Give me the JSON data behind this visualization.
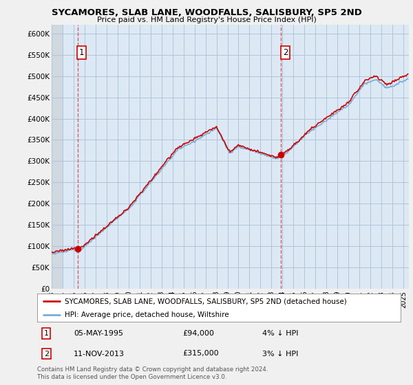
{
  "title1": "SYCAMORES, SLAB LANE, WOODFALLS, SALISBURY, SP5 2ND",
  "title2": "Price paid vs. HM Land Registry's House Price Index (HPI)",
  "ylabel_ticks": [
    "£0",
    "£50K",
    "£100K",
    "£150K",
    "£200K",
    "£250K",
    "£300K",
    "£350K",
    "£400K",
    "£450K",
    "£500K",
    "£550K",
    "£600K"
  ],
  "ytick_values": [
    0,
    50000,
    100000,
    150000,
    200000,
    250000,
    300000,
    350000,
    400000,
    450000,
    500000,
    550000,
    600000
  ],
  "ylim": [
    0,
    620000
  ],
  "xlim_start": 1993.0,
  "xlim_end": 2025.5,
  "sale1_date": 1995.35,
  "sale1_price": 94000,
  "sale2_date": 2013.87,
  "sale2_price": 315000,
  "legend_line1": "SYCAMORES, SLAB LANE, WOODFALLS, SALISBURY, SP5 2ND (detached house)",
  "legend_line2": "HPI: Average price, detached house, Wiltshire",
  "ann1_date": "05-MAY-1995",
  "ann1_price": "£94,000",
  "ann1_hpi": "4% ↓ HPI",
  "ann2_date": "11-NOV-2013",
  "ann2_price": "£315,000",
  "ann2_hpi": "3% ↓ HPI",
  "footer": "Contains HM Land Registry data © Crown copyright and database right 2024.\nThis data is licensed under the Open Government Licence v3.0.",
  "hpi_color": "#7aadd4",
  "sold_color": "#cc0000",
  "bg_color": "#f0f0f0",
  "plot_bg_color": "#dce9f5",
  "hatch_bg_color": "#d0d8e0",
  "grid_color": "#b0c4d8",
  "vline_color": "#dd4444"
}
